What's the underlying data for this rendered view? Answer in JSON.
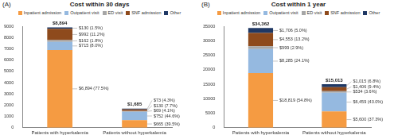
{
  "chart_data": [
    {
      "type": "bar",
      "panel": "(A)",
      "title": "Cost within 30 days",
      "categories": [
        "Patients with hyperkalemia",
        "Patients without hyperkalemia"
      ],
      "stacked": true,
      "data_labels": true,
      "grid": false,
      "legend": "top",
      "ylim": [
        0,
        9000
      ],
      "yticks": [
        0,
        1000,
        2000,
        3000,
        4000,
        5000,
        6000,
        7000,
        8000,
        9000
      ],
      "totals": [
        8894,
        1685
      ],
      "total_labels": [
        "$8,894",
        "$1,685"
      ],
      "series": [
        {
          "name": "Inpatient admission",
          "color": "#f59b42",
          "values": [
            6894,
            665
          ],
          "value_labels": [
            "$6,894 (77.5%)",
            "$665 (39.5%)"
          ]
        },
        {
          "name": "Outpatient visit",
          "color": "#95b9e0",
          "values": [
            715,
            752
          ],
          "value_labels": [
            "$715 (8.0%)",
            "$752 (44.6%)"
          ]
        },
        {
          "name": "ED visit",
          "color": "#a6a6a6",
          "values": [
            162,
            69
          ],
          "value_labels": [
            "$162 (1.8%)",
            "$69 (4.1%)"
          ]
        },
        {
          "name": "SNF admission",
          "color": "#8e4a1c",
          "values": [
            992,
            130
          ],
          "value_labels": [
            "$992 (11.2%)",
            "$130 (7.7%)"
          ]
        },
        {
          "name": "Other",
          "color": "#1f3864",
          "values": [
            130,
            73
          ],
          "value_labels": [
            "$130 (1.5%)",
            "$73 (4.3%)"
          ]
        }
      ]
    },
    {
      "type": "bar",
      "panel": "(B)",
      "title": "Cost within 1 year",
      "categories": [
        "Patients with hyperkalemia",
        "Patients without hyperkalemia"
      ],
      "stacked": true,
      "data_labels": true,
      "grid": false,
      "legend": "top",
      "ylim": [
        0,
        35000
      ],
      "yticks": [
        0,
        5000,
        10000,
        15000,
        20000,
        25000,
        30000,
        35000
      ],
      "totals": [
        34362,
        15013
      ],
      "total_labels": [
        "$34,362",
        "$15,013"
      ],
      "series": [
        {
          "name": "Inpatient admission",
          "color": "#f59b42",
          "values": [
            18819,
            5600
          ],
          "value_labels": [
            "$18,819 (54.8%)",
            "$5,600 (37.3%)"
          ]
        },
        {
          "name": "Outpatient visit",
          "color": "#95b9e0",
          "values": [
            8285,
            6459
          ],
          "value_labels": [
            "$8,285 (24.1%)",
            "$6,459 (43.0%)"
          ]
        },
        {
          "name": "ED visit",
          "color": "#a6a6a6",
          "values": [
            999,
            534
          ],
          "value_labels": [
            "$999 (2.9%)",
            "$534 (3.6%)"
          ]
        },
        {
          "name": "SNF admission",
          "color": "#8e4a1c",
          "values": [
            4553,
            1406
          ],
          "value_labels": [
            "$4,553 (13.2%)",
            "$1,406 (9.4%)"
          ]
        },
        {
          "name": "Other",
          "color": "#1f3864",
          "values": [
            1706,
            1015
          ],
          "value_labels": [
            "$1,706 (5.0%)",
            "$1,015 (6.8%)"
          ]
        }
      ]
    }
  ]
}
